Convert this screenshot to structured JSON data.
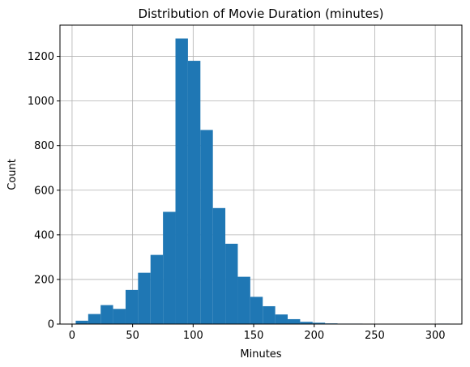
{
  "chart_data": {
    "type": "bar",
    "title": "Distribution of Movie Duration (minutes)",
    "xlabel": "Minutes",
    "ylabel": "Count",
    "xlim": [
      -10,
      322
    ],
    "ylim": [
      0,
      1340
    ],
    "xticks": [
      0,
      50,
      100,
      150,
      200,
      250,
      300
    ],
    "yticks": [
      0,
      200,
      400,
      600,
      800,
      1000,
      1200
    ],
    "grid": true,
    "bar_color": "#1f77b4",
    "bins": [
      {
        "x0": 3,
        "x1": 13.3,
        "value": 15
      },
      {
        "x0": 13.3,
        "x1": 23.6,
        "value": 45
      },
      {
        "x0": 23.6,
        "x1": 33.9,
        "value": 85
      },
      {
        "x0": 33.9,
        "x1": 44.2,
        "value": 68
      },
      {
        "x0": 44.2,
        "x1": 54.5,
        "value": 153
      },
      {
        "x0": 54.5,
        "x1": 64.8,
        "value": 230
      },
      {
        "x0": 64.8,
        "x1": 75.1,
        "value": 310
      },
      {
        "x0": 75.1,
        "x1": 85.4,
        "value": 503
      },
      {
        "x0": 85.4,
        "x1": 95.7,
        "value": 1280
      },
      {
        "x0": 95.7,
        "x1": 106.0,
        "value": 1180
      },
      {
        "x0": 106.0,
        "x1": 116.3,
        "value": 870
      },
      {
        "x0": 116.3,
        "x1": 126.6,
        "value": 520
      },
      {
        "x0": 126.6,
        "x1": 136.9,
        "value": 360
      },
      {
        "x0": 136.9,
        "x1": 147.2,
        "value": 212
      },
      {
        "x0": 147.2,
        "x1": 157.5,
        "value": 122
      },
      {
        "x0": 157.5,
        "x1": 167.8,
        "value": 80
      },
      {
        "x0": 167.8,
        "x1": 178.1,
        "value": 43
      },
      {
        "x0": 178.1,
        "x1": 188.4,
        "value": 22
      },
      {
        "x0": 188.4,
        "x1": 198.7,
        "value": 10
      },
      {
        "x0": 198.7,
        "x1": 209.0,
        "value": 6
      },
      {
        "x0": 209.0,
        "x1": 219.3,
        "value": 3
      },
      {
        "x0": 219.3,
        "x1": 229.6,
        "value": 2
      },
      {
        "x0": 229.6,
        "x1": 239.9,
        "value": 2
      },
      {
        "x0": 239.9,
        "x1": 250.2,
        "value": 1
      },
      {
        "x0": 250.2,
        "x1": 260.5,
        "value": 1
      },
      {
        "x0": 260.5,
        "x1": 270.8,
        "value": 0
      },
      {
        "x0": 270.8,
        "x1": 281.1,
        "value": 1
      },
      {
        "x0": 281.1,
        "x1": 291.4,
        "value": 0
      },
      {
        "x0": 291.4,
        "x1": 301.7,
        "value": 0
      },
      {
        "x0": 301.7,
        "x1": 312.0,
        "value": 2
      }
    ]
  }
}
